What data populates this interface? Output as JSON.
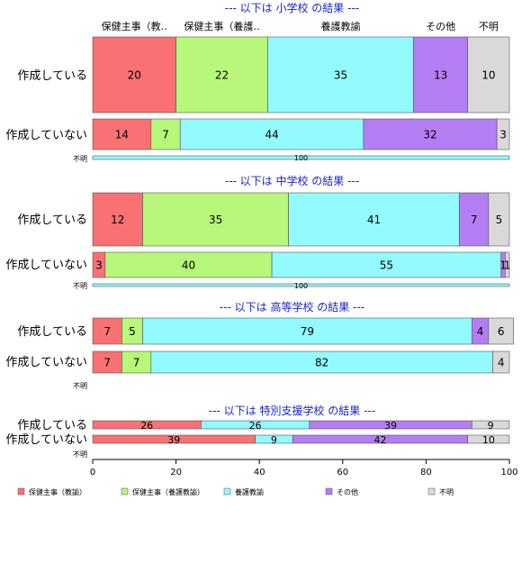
{
  "colors": {
    "保健主事（教諭）": "#f97172",
    "保健主事（養護教諭）": "#b7f77a",
    "養護教諭": "#93fafd",
    "その他": "#b57df3",
    "不明": "#d9d9d9",
    "section_title": "#1a22d6"
  },
  "header_labels": [
    "保健主事（教‥",
    "保健主事（養護‥",
    "養護教諭",
    "その他",
    "不明"
  ],
  "chart_data": {
    "type": "bar",
    "orientation": "horizontal",
    "stacked": true,
    "xlim": [
      0,
      100
    ],
    "xticks": [
      0,
      20,
      40,
      60,
      80,
      100
    ],
    "legend": {
      "placement": "bottom",
      "entries": [
        "保健主事（教諭）",
        "保健主事（養護教諭）",
        "養護教諭",
        "その他",
        "不明"
      ]
    },
    "sections": [
      {
        "title": "--- 以下は 小学校 の結果 ---",
        "rows": [
          {
            "label": "作成している",
            "values": [
              20,
              22,
              35,
              13,
              10
            ]
          },
          {
            "label": "作成していない",
            "values": [
              14,
              7,
              44,
              32,
              3
            ]
          },
          {
            "label": "不明",
            "values": [
              0,
              0,
              100,
              0,
              0
            ],
            "value_labels": [
              "",
              "",
              "100",
              "",
              ""
            ]
          }
        ]
      },
      {
        "title": "--- 以下は 中学校 の結果 ---",
        "rows": [
          {
            "label": "作成している",
            "values": [
              12,
              35,
              41,
              7,
              5
            ]
          },
          {
            "label": "作成していない",
            "values": [
              3,
              40,
              55,
              1,
              1
            ]
          },
          {
            "label": "不明",
            "values": [
              0,
              0,
              100,
              0,
              0
            ],
            "value_labels": [
              "",
              "",
              "100",
              "",
              ""
            ]
          }
        ]
      },
      {
        "title": "--- 以下は 高等学校 の結果 ---",
        "rows": [
          {
            "label": "作成している",
            "values": [
              7,
              5,
              79,
              4,
              6
            ]
          },
          {
            "label": "作成していない",
            "values": [
              7,
              7,
              82,
              0,
              4
            ]
          },
          {
            "label": "不明",
            "values": [
              0,
              0,
              0,
              0,
              0
            ]
          }
        ]
      },
      {
        "title": "--- 以下は 特別支援学校 の結果 ---",
        "rows": [
          {
            "label": "作成している",
            "values": [
              26,
              0,
              26,
              39,
              9
            ]
          },
          {
            "label": "作成していない",
            "values": [
              39,
              0,
              9,
              42,
              10
            ]
          },
          {
            "label": "不明",
            "values": [
              0,
              0,
              0,
              0,
              0
            ]
          }
        ]
      }
    ]
  }
}
